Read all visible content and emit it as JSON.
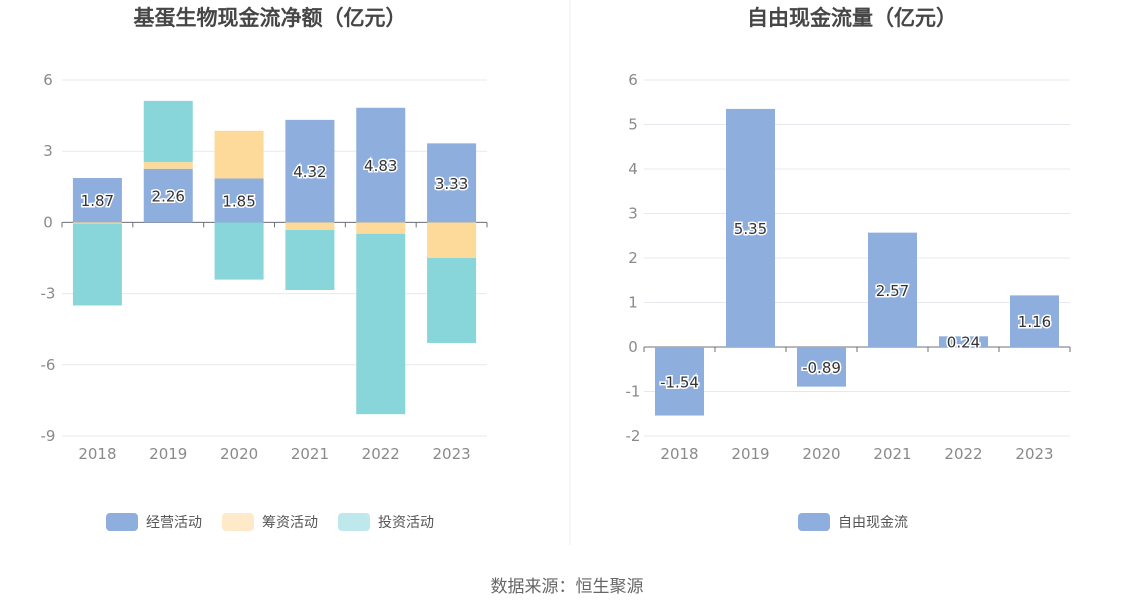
{
  "chart_data": [
    {
      "type": "bar",
      "stacked": true,
      "title": "基蛋生物现金流净额（亿元）",
      "categories": [
        "2018",
        "2019",
        "2020",
        "2021",
        "2022",
        "2023"
      ],
      "series": [
        {
          "name": "经营活动",
          "color": "#8eaedd",
          "values": [
            1.87,
            2.26,
            1.85,
            4.32,
            4.83,
            3.33
          ]
        },
        {
          "name": "筹资活动",
          "color": "#fdd99a",
          "values": [
            -0.05,
            0.28,
            2.01,
            -0.32,
            -0.48,
            -1.5
          ]
        },
        {
          "name": "投资活动",
          "color": "#88d6da",
          "values": [
            -3.45,
            2.58,
            -2.41,
            -2.53,
            -7.6,
            -3.58
          ]
        }
      ],
      "data_labels": [
        "1.87",
        "2.26",
        "1.85",
        "4.32",
        "4.83",
        "3.33"
      ],
      "yticks": [
        "6",
        "3",
        "0",
        "-3",
        "-6",
        "-9"
      ],
      "ylim": [
        -9,
        6
      ],
      "grid": true,
      "legend_position": "bottom"
    },
    {
      "type": "bar",
      "title": "自由现金流量（亿元）",
      "categories": [
        "2018",
        "2019",
        "2020",
        "2021",
        "2022",
        "2023"
      ],
      "series": [
        {
          "name": "自由现金流",
          "color": "#8eaedd",
          "values": [
            -1.54,
            5.35,
            -0.89,
            2.57,
            0.24,
            1.16
          ]
        }
      ],
      "data_labels": [
        "-1.54",
        "5.35",
        "-0.89",
        "2.57",
        "0.24",
        "1.16"
      ],
      "yticks": [
        "6",
        "5",
        "4",
        "3",
        "2",
        "1",
        "0",
        "-1",
        "-2"
      ],
      "ylim": [
        -2,
        6
      ],
      "grid": true,
      "legend_position": "bottom"
    }
  ],
  "footer": {
    "source": "数据来源：恒生聚源"
  }
}
